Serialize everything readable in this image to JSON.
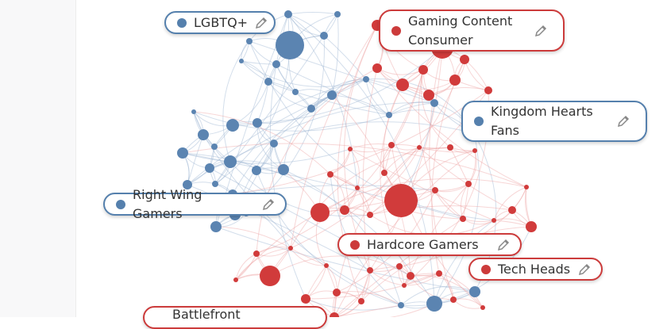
{
  "labels": [
    {
      "text": "LGBTQ+",
      "color": "#5580ad"
    },
    {
      "text": "Gaming Content Consumer",
      "color": "#cc3b3b"
    },
    {
      "text": "Kingdom Hearts Fans",
      "color": "#5580ad"
    },
    {
      "text": "Right Wing Gamers",
      "color": "#5580ad"
    },
    {
      "text": "Hardcore Gamers",
      "color": "#cc3b3b"
    },
    {
      "text": "Tech Heads",
      "color": "#cc3b3b"
    },
    {
      "text": "Battlefront",
      "color": "#cc3b3b"
    }
  ]
}
